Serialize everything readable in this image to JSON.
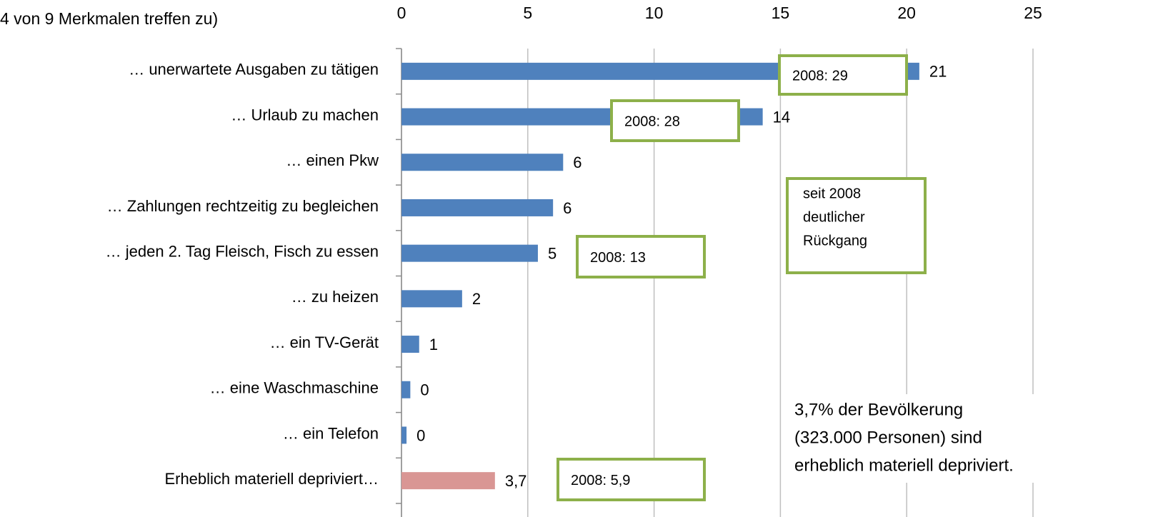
{
  "chart_data": {
    "type": "barh",
    "title": "4 von 9 Merkmalen treffen zu)",
    "categories": [
      "… unerwartete Ausgaben zu tätigen",
      "… Urlaub zu machen",
      "…  einen Pkw",
      "… Zahlungen rechtzeitig zu begleichen",
      "… jeden 2. Tag Fleisch, Fisch zu essen",
      "… zu heizen",
      "… ein TV-Gerät",
      "… eine Waschmaschine",
      "…  ein Telefon",
      "Erheblich materiell depriviert…"
    ],
    "values": [
      20.5,
      14.3,
      6.4,
      6.0,
      5.4,
      2.4,
      0.7,
      0.35,
      0.2,
      3.7
    ],
    "value_labels": [
      "21",
      "14",
      "6",
      "6",
      "5",
      "2",
      "1",
      "0",
      "0",
      "3,7"
    ],
    "colors": [
      "#4f81bd",
      "#4f81bd",
      "#4f81bd",
      "#4f81bd",
      "#4f81bd",
      "#4f81bd",
      "#4f81bd",
      "#4f81bd",
      "#4f81bd",
      "#d99694"
    ],
    "xlim": [
      0,
      25
    ],
    "xticks": [
      0,
      5,
      10,
      15,
      20,
      25
    ],
    "grid": true,
    "annotations": [
      [
        "2008: 29"
      ],
      [
        "2008: 28"
      ],
      [
        "seit 2008",
        "deutlicher",
        "Rückgang"
      ],
      [
        "2008: 13"
      ],
      [
        "2008: 5,9"
      ]
    ],
    "note": [
      "3,7% der Bevölkerung",
      "(323.000 Personen) sind",
      "erheblich materiell depriviert."
    ]
  }
}
